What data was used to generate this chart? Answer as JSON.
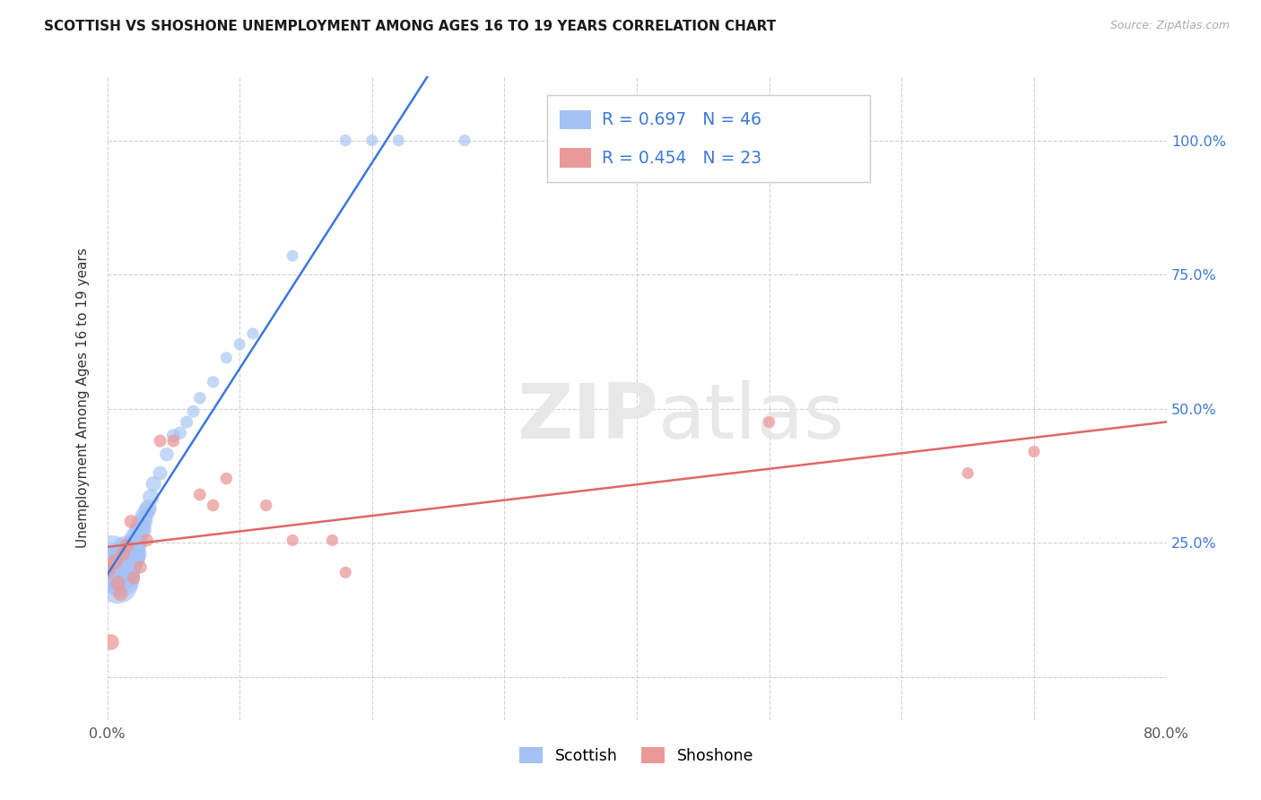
{
  "title": "SCOTTISH VS SHOSHONE UNEMPLOYMENT AMONG AGES 16 TO 19 YEARS CORRELATION CHART",
  "source": "Source: ZipAtlas.com",
  "ylabel": "Unemployment Among Ages 16 to 19 years",
  "xlim": [
    0.0,
    0.8
  ],
  "ylim": [
    -0.08,
    1.12
  ],
  "xtick_positions": [
    0.0,
    0.1,
    0.2,
    0.3,
    0.4,
    0.5,
    0.6,
    0.7,
    0.8
  ],
  "xticklabels": [
    "0.0%",
    "",
    "",
    "",
    "",
    "",
    "",
    "",
    "80.0%"
  ],
  "ytick_positions": [
    0.0,
    0.25,
    0.5,
    0.75,
    1.0
  ],
  "yticklabels_right": [
    "",
    "25.0%",
    "50.0%",
    "75.0%",
    "100.0%"
  ],
  "legend_R_scottish": "R = 0.697",
  "legend_N_scottish": "N = 46",
  "legend_R_shoshone": "R = 0.454",
  "legend_N_shoshone": "N = 23",
  "scottish_color": "#a4c2f4",
  "shoshone_color": "#ea9999",
  "scottish_line_color": "#3c78d8",
  "shoshone_line_color": "#e06666",
  "legend_value_color": "#3c78d8",
  "watermark_color": "#e8e8e8",
  "scottish_x": [
    0.003,
    0.005,
    0.006,
    0.008,
    0.009,
    0.01,
    0.01,
    0.011,
    0.012,
    0.013,
    0.014,
    0.015,
    0.015,
    0.016,
    0.017,
    0.018,
    0.019,
    0.02,
    0.02,
    0.021,
    0.022,
    0.024,
    0.025,
    0.026,
    0.027,
    0.028,
    0.03,
    0.031,
    0.033,
    0.035,
    0.04,
    0.045,
    0.05,
    0.055,
    0.06,
    0.065,
    0.07,
    0.08,
    0.09,
    0.1,
    0.11,
    0.14,
    0.18,
    0.2,
    0.22,
    0.27
  ],
  "scottish_y": [
    0.22,
    0.195,
    0.21,
    0.175,
    0.195,
    0.185,
    0.215,
    0.195,
    0.2,
    0.21,
    0.225,
    0.215,
    0.235,
    0.215,
    0.22,
    0.235,
    0.225,
    0.23,
    0.245,
    0.25,
    0.26,
    0.27,
    0.28,
    0.275,
    0.29,
    0.3,
    0.31,
    0.315,
    0.335,
    0.36,
    0.38,
    0.415,
    0.45,
    0.455,
    0.475,
    0.495,
    0.52,
    0.55,
    0.595,
    0.62,
    0.64,
    0.785,
    1.0,
    1.0,
    1.0,
    1.0
  ],
  "scottish_sizes": [
    800,
    700,
    650,
    600,
    560,
    530,
    500,
    470,
    440,
    410,
    380,
    360,
    340,
    320,
    300,
    280,
    260,
    240,
    220,
    200,
    180,
    160,
    150,
    140,
    130,
    120,
    110,
    105,
    95,
    85,
    75,
    70,
    65,
    60,
    58,
    56,
    54,
    52,
    50,
    50,
    50,
    50,
    50,
    50,
    50,
    50
  ],
  "shoshone_x": [
    0.0,
    0.003,
    0.006,
    0.008,
    0.01,
    0.012,
    0.015,
    0.018,
    0.02,
    0.025,
    0.03,
    0.04,
    0.05,
    0.07,
    0.08,
    0.09,
    0.12,
    0.14,
    0.17,
    0.18,
    0.5,
    0.65,
    0.7
  ],
  "shoshone_y": [
    0.2,
    0.065,
    0.215,
    0.175,
    0.155,
    0.23,
    0.245,
    0.29,
    0.185,
    0.205,
    0.255,
    0.44,
    0.44,
    0.34,
    0.32,
    0.37,
    0.32,
    0.255,
    0.255,
    0.195,
    0.475,
    0.38,
    0.42
  ],
  "shoshone_sizes": [
    100,
    90,
    85,
    80,
    75,
    70,
    70,
    65,
    60,
    60,
    58,
    58,
    56,
    55,
    54,
    53,
    52,
    51,
    50,
    50,
    50,
    50,
    50
  ],
  "background_color": "#ffffff",
  "grid_color": "#cccccc"
}
